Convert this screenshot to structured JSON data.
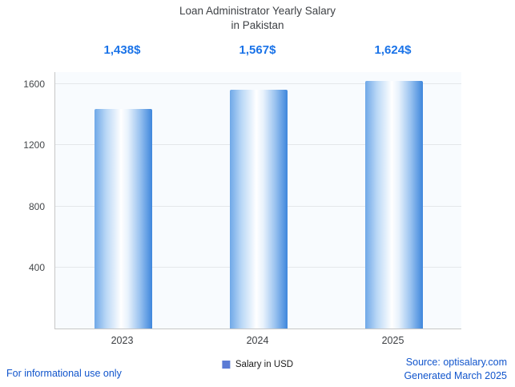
{
  "chart": {
    "title_line1": "Loan Administrator Yearly Salary",
    "title_line2": "in Pakistan"
  },
  "legend": {
    "label": "Salary in USD"
  },
  "footer": {
    "left": "For informational use only",
    "source": "Source: optisalary.com",
    "generated": "Generated March 2025"
  },
  "chart_data": {
    "type": "bar",
    "title": "Loan Administrator Yearly Salary in Pakistan",
    "categories": [
      "2023",
      "2024",
      "2025"
    ],
    "values": [
      1438,
      1567,
      1624
    ],
    "value_labels": [
      "1,438$",
      "1,567$",
      "1,624$"
    ],
    "series": [
      {
        "name": "Salary in USD",
        "values": [
          1438,
          1567,
          1624
        ]
      }
    ],
    "xlabel": "",
    "ylabel": "",
    "yticks": [
      400,
      800,
      1200,
      1600
    ],
    "ylim": [
      0,
      1680
    ],
    "grid": true,
    "legend_position": "bottom",
    "colors": {
      "value_label": "#1a73e8",
      "bar_edge_blue": "#3e86dc",
      "bar_center": "#ffffff",
      "legend_swatch": "#5b7bd5",
      "footer_text": "#1155cc",
      "plot_background": "#f8fbfe"
    }
  }
}
